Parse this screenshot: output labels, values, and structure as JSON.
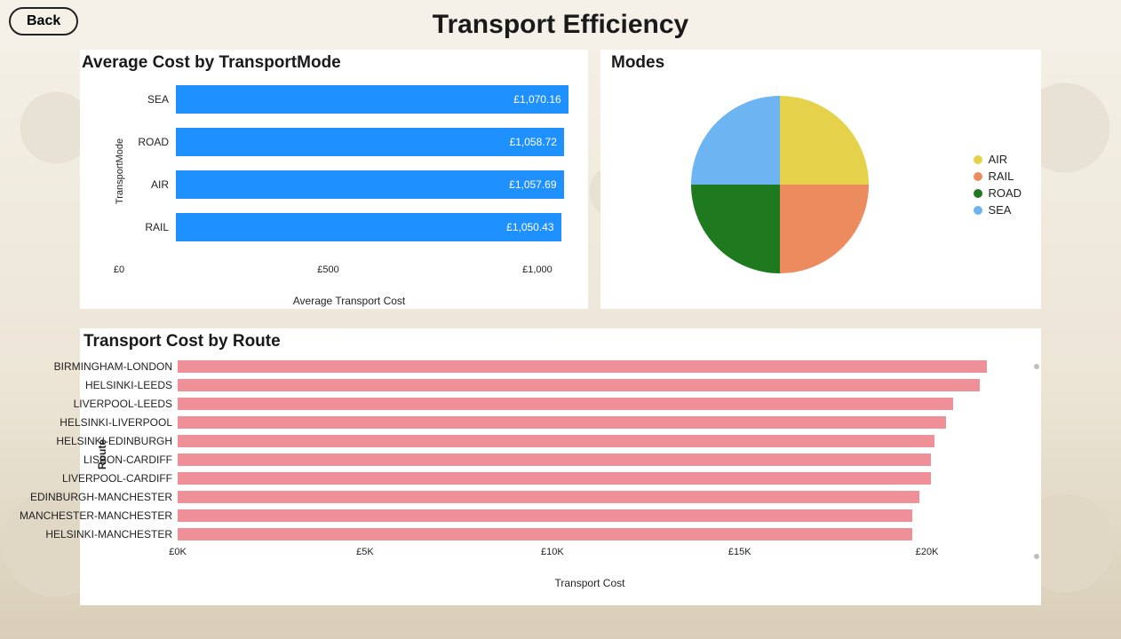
{
  "header": {
    "back_label": "Back",
    "title": "Transport Efficiency"
  },
  "cost_by_mode": {
    "type": "bar-horizontal",
    "title": "Average Cost by TransportMode",
    "y_axis_label": "TransportMode",
    "x_axis_label": "Average Transport Cost",
    "bar_color": "#1f90ff",
    "value_text_color": "#ffffff",
    "label_fontsize": 12,
    "title_fontsize": 19,
    "xlim": [
      0,
      1100
    ],
    "xticks": [
      {
        "pos": 0,
        "label": "£0"
      },
      {
        "pos": 500,
        "label": "£500"
      },
      {
        "pos": 1000,
        "label": "£1,000"
      }
    ],
    "bars": [
      {
        "category": "SEA",
        "value": 1070.16,
        "label": "£1,070.16"
      },
      {
        "category": "ROAD",
        "value": 1058.72,
        "label": "£1,058.72"
      },
      {
        "category": "AIR",
        "value": 1057.69,
        "label": "£1,057.69"
      },
      {
        "category": "RAIL",
        "value": 1050.43,
        "label": "£1,050.43"
      }
    ]
  },
  "modes_pie": {
    "type": "pie",
    "title": "Modes",
    "title_fontsize": 19,
    "background_color": "#ffffff",
    "slices": [
      {
        "label": "AIR",
        "value": 25,
        "color": "#e6d14a"
      },
      {
        "label": "RAIL",
        "value": 25,
        "color": "#ec8b5e"
      },
      {
        "label": "ROAD",
        "value": 25,
        "color": "#1f7a1f"
      },
      {
        "label": "SEA",
        "value": 25,
        "color": "#6db4f2"
      }
    ]
  },
  "cost_by_route": {
    "type": "bar-horizontal",
    "title": "Transport Cost by Route",
    "y_axis_label": "Route",
    "x_axis_label": "Transport Cost",
    "bar_color": "#ef8f97",
    "title_fontsize": 19,
    "label_fontsize": 12,
    "xlim": [
      0,
      22000
    ],
    "xticks": [
      {
        "pos": 0,
        "label": "£0K"
      },
      {
        "pos": 5000,
        "label": "£5K"
      },
      {
        "pos": 10000,
        "label": "£10K"
      },
      {
        "pos": 15000,
        "label": "£15K"
      },
      {
        "pos": 20000,
        "label": "£20K"
      }
    ],
    "bars": [
      {
        "category": "BIRMINGHAM-LONDON",
        "value": 21600
      },
      {
        "category": "HELSINKI-LEEDS",
        "value": 21400
      },
      {
        "category": "LIVERPOOL-LEEDS",
        "value": 20700
      },
      {
        "category": "HELSINKI-LIVERPOOL",
        "value": 20500
      },
      {
        "category": "HELSINKI-EDINBURGH",
        "value": 20200
      },
      {
        "category": "LISBON-CARDIFF",
        "value": 20100
      },
      {
        "category": "LIVERPOOL-CARDIFF",
        "value": 20100
      },
      {
        "category": "EDINBURGH-MANCHESTER",
        "value": 19800
      },
      {
        "category": "MANCHESTER-MANCHESTER",
        "value": 19600
      },
      {
        "category": "HELSINKI-MANCHESTER",
        "value": 19600
      }
    ]
  }
}
